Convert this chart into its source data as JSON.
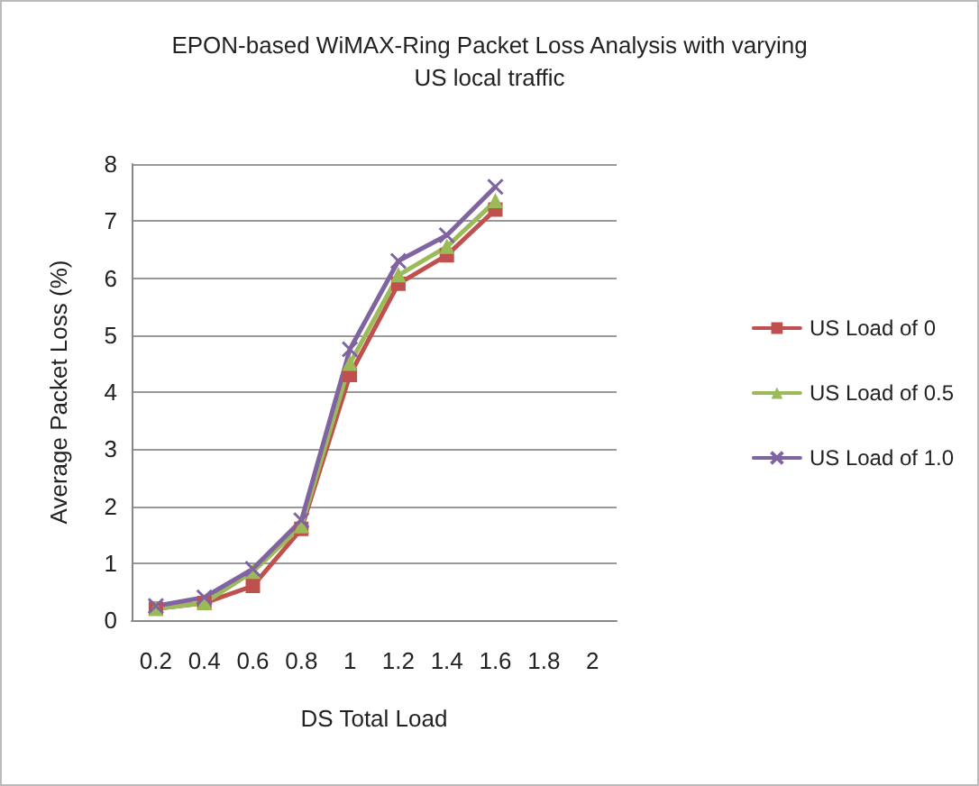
{
  "chart_data": {
    "type": "line",
    "title": "EPON-based WiMAX-Ring Packet Loss Analysis with varying\nUS local traffic",
    "xlabel": "DS Total Load",
    "ylabel": "Average Packet Loss (%)",
    "categories": [
      "0.2",
      "0.4",
      "0.6",
      "0.8",
      "1",
      "1.2",
      "1.4",
      "1.6",
      "1.8",
      "2"
    ],
    "series": [
      {
        "name": "US Load of 0",
        "color": "#c0504d",
        "marker": "square",
        "values": [
          0.2,
          0.3,
          0.6,
          1.6,
          4.3,
          5.9,
          6.4,
          7.2,
          null,
          null
        ]
      },
      {
        "name": "US Load of 0.5",
        "color": "#9bbb59",
        "marker": "triangle",
        "values": [
          0.2,
          0.3,
          0.85,
          1.65,
          4.5,
          6.05,
          6.55,
          7.35,
          null,
          null
        ]
      },
      {
        "name": "US Load of 1.0",
        "color": "#8064a2",
        "marker": "cross",
        "values": [
          0.25,
          0.4,
          0.9,
          1.75,
          4.75,
          6.3,
          6.75,
          7.6,
          null,
          null
        ]
      }
    ],
    "ylim": [
      0,
      8
    ],
    "yticks": [
      0,
      1,
      2,
      3,
      4,
      5,
      6,
      7,
      8
    ],
    "grid": "y",
    "legend": "right",
    "line_style": "solid"
  }
}
